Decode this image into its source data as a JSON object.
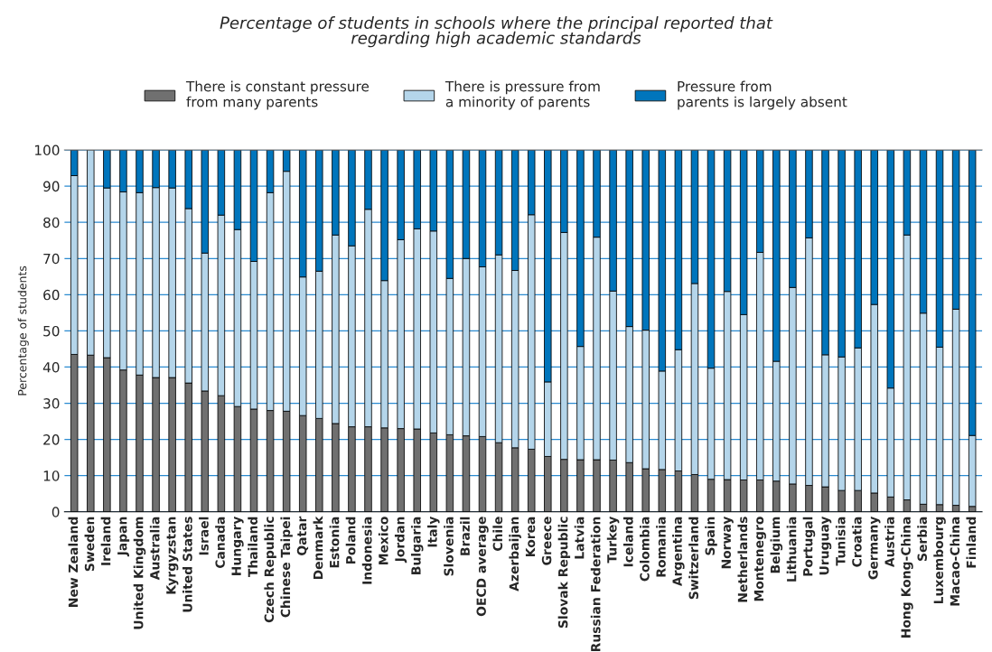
{
  "chart_data": {
    "type": "bar",
    "stacked": true,
    "title": "Percentage of students in schools where the principal reported that\nregarding high academic standards",
    "ylabel": "Percentage of students",
    "categories": [
      "New Zealand",
      "Sweden",
      "Ireland",
      "Japan",
      "United Kingdom",
      "Australia",
      "Kyrgyzstan",
      "United States",
      "Israel",
      "Canada",
      "Hungary",
      "Thailand",
      "Czech Republic",
      "Chinese Taipei",
      "Qatar",
      "Denmark",
      "Estonia",
      "Poland",
      "Indonesia",
      "Mexico",
      "Jordan",
      "Bulgaria",
      "Italy",
      "Slovenia",
      "Brazil",
      "OECD average",
      "Chile",
      "Azerbaijan",
      "Korea",
      "Greece",
      "Slovak Republic",
      "Latvia",
      "Russian Federation",
      "Turkey",
      "Iceland",
      "Colombia",
      "Romania",
      "Argentina",
      "Switzerland",
      "Spain",
      "Norway",
      "Netherlands",
      "Montenegro",
      "Belgium",
      "Lithuania",
      "Portugal",
      "Uruguay",
      "Tunisia",
      "Croatia",
      "Germany",
      "Austria",
      "Hong Kong-China",
      "Serbia",
      "Luxembourg",
      "Macao-China",
      "Finland"
    ],
    "series": [
      {
        "name": "There is constant pressure\nfrom many parents",
        "color": "#707070",
        "values": [
          43.5,
          43.3,
          42.6,
          39.2,
          37.8,
          37.1,
          37.1,
          35.6,
          33.4,
          32.1,
          29.1,
          28.4,
          28.0,
          27.8,
          26.6,
          25.8,
          24.4,
          23.5,
          23.5,
          23.2,
          23.0,
          22.9,
          21.8,
          21.3,
          21.0,
          20.8,
          19.1,
          17.7,
          17.3,
          15.3,
          14.5,
          14.4,
          14.4,
          14.3,
          13.6,
          11.9,
          11.7,
          11.3,
          10.3,
          9.0,
          8.9,
          8.8,
          8.8,
          8.5,
          7.7,
          7.3,
          6.9,
          5.9,
          5.9,
          5.2,
          4.1,
          3.3,
          2.1,
          2.0,
          1.8,
          1.5
        ]
      },
      {
        "name": "There is pressure from\na minority of parents",
        "color": "#b4d5ea",
        "values": [
          49.4,
          56.7,
          46.9,
          49.2,
          50.4,
          52.5,
          52.4,
          48.2,
          38.1,
          49.9,
          48.9,
          40.8,
          60.2,
          66.3,
          38.3,
          40.7,
          52.1,
          50.0,
          60.1,
          40.7,
          52.2,
          55.3,
          55.8,
          43.2,
          49.0,
          46.9,
          51.9,
          49.0,
          64.8,
          20.6,
          62.7,
          31.3,
          61.5,
          46.7,
          37.6,
          38.3,
          27.2,
          33.5,
          52.8,
          30.7,
          52.0,
          45.7,
          62.9,
          33.1,
          54.3,
          68.4,
          36.5,
          36.9,
          39.4,
          52.1,
          30.1,
          73.2,
          52.8,
          43.5,
          54.2,
          19.6
        ]
      },
      {
        "name": "Pressure from\nparents is largely absent",
        "color": "#0075bc",
        "values": [
          7.1,
          0,
          10.5,
          11.6,
          11.8,
          10.4,
          10.5,
          16.2,
          28.5,
          18.0,
          22.0,
          30.8,
          11.8,
          5.9,
          35.1,
          33.5,
          23.5,
          26.5,
          16.4,
          36.1,
          24.8,
          21.8,
          22.4,
          35.5,
          30.0,
          32.3,
          29.0,
          33.3,
          17.9,
          64.1,
          22.8,
          54.3,
          24.1,
          39.0,
          48.8,
          49.8,
          61.1,
          55.2,
          36.9,
          60.3,
          39.1,
          45.5,
          28.3,
          58.4,
          38.0,
          24.3,
          56.6,
          57.2,
          54.7,
          42.7,
          65.8,
          23.5,
          45.1,
          54.5,
          44.0,
          78.9
        ]
      }
    ],
    "ylim": [
      0,
      100
    ],
    "yticks": [
      0,
      10,
      20,
      30,
      40,
      50,
      60,
      70,
      80,
      90,
      100
    ],
    "grid": "y",
    "legend": "top"
  }
}
